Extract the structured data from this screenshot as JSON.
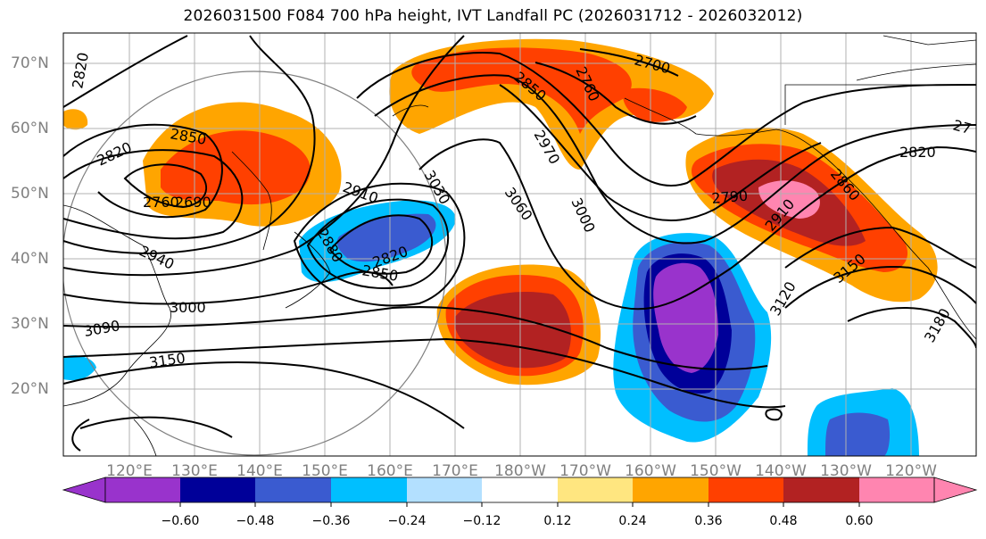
{
  "title": "2026031500 F084 700 hPa height, IVT Landfall PC (2026031712 - 2026032012)",
  "lat_labels": [
    "70°N",
    "60°N",
    "50°N",
    "40°N",
    "30°N",
    "20°N"
  ],
  "lon_labels": [
    "120°E",
    "130°E",
    "140°E",
    "150°E",
    "160°E",
    "170°E",
    "180°W",
    "170°W",
    "160°W",
    "150°W",
    "140°W",
    "130°W",
    "120°W"
  ],
  "contour_labels": [
    "2820",
    "2850",
    "2820",
    "2760",
    "2690",
    "2940",
    "3000",
    "3090",
    "3150",
    "2910",
    "2880",
    "2820",
    "2850",
    "3030",
    "3060",
    "2970",
    "2850",
    "2760",
    "2700",
    "3000",
    "2790",
    "2910",
    "2820",
    "2860",
    "3150",
    "3120",
    "3180",
    "27"
  ],
  "colorbar": {
    "ticks": [
      "−0.60",
      "−0.48",
      "−0.36",
      "−0.24",
      "−0.12",
      "0.12",
      "0.24",
      "0.36",
      "0.48",
      "0.60"
    ],
    "colors": [
      "#9933cc",
      "#000099",
      "#3a5bd0",
      "#00bfff",
      "#b3e0ff",
      "#ffffff",
      "#ffe680",
      "#ffa500",
      "#ff4000",
      "#b22222",
      "#ff85b0"
    ]
  }
}
